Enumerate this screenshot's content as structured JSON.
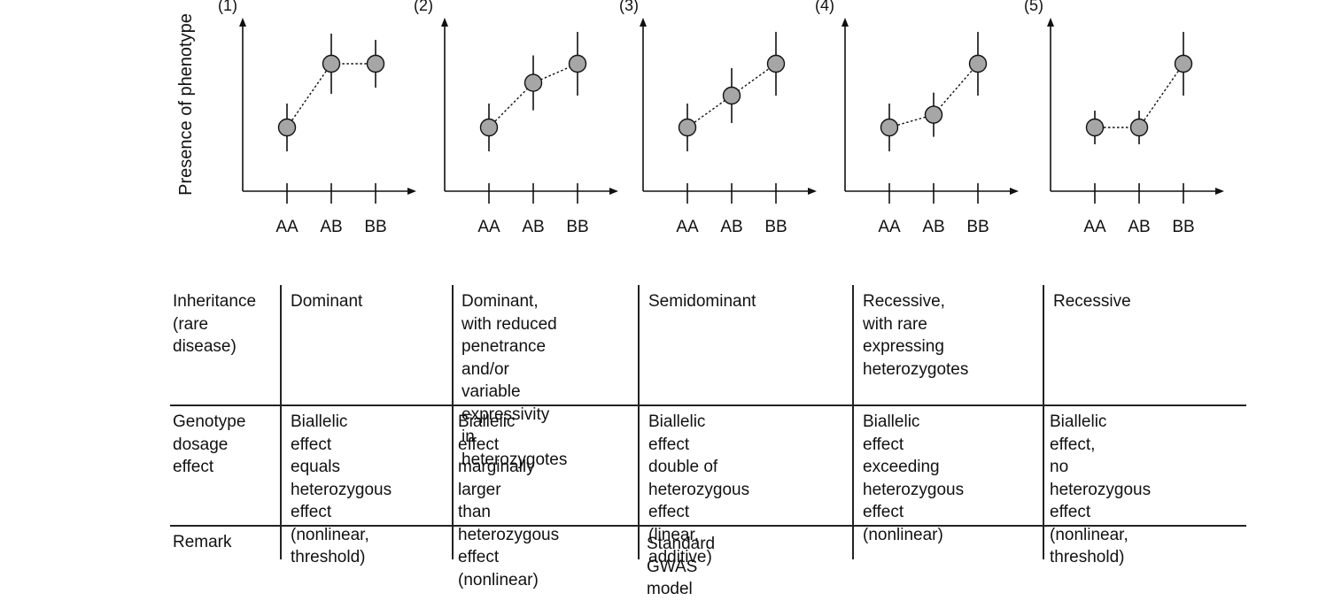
{
  "y_axis_label": "Presence of phenotype",
  "panels": [
    {
      "label": "(1)",
      "categories": [
        "AA",
        "AB",
        "BB"
      ],
      "values": [
        0.45,
        0.85,
        0.85
      ]
    },
    {
      "label": "(2)",
      "categories": [
        "AA",
        "AB",
        "BB"
      ],
      "values": [
        0.45,
        0.73,
        0.85
      ]
    },
    {
      "label": "(3)",
      "categories": [
        "AA",
        "AB",
        "BB"
      ],
      "values": [
        0.45,
        0.65,
        0.85
      ]
    },
    {
      "label": "(4)",
      "categories": [
        "AA",
        "AB",
        "BB"
      ],
      "values": [
        0.45,
        0.53,
        0.85
      ]
    },
    {
      "label": "(5)",
      "categories": [
        "AA",
        "AB",
        "BB"
      ],
      "values": [
        0.45,
        0.45,
        0.85
      ]
    }
  ],
  "table": {
    "rows": [
      {
        "header": "Inheritance\n(rare\ndisease)",
        "cells": [
          "Dominant",
          "Dominant,\nwith reduced\npenetrance and/or\nvariable expressivity\nin heterozygotes",
          "Semidominant",
          "Recessive,\nwith rare expressing\nheterozygotes",
          "Recessive"
        ]
      },
      {
        "header": "Genotype\ndosage\neffect",
        "cells": [
          "Biallelic effect\nequals\nheterozygous\neffect (nonlinear,\nthreshold)",
          "Biallelic effect\nmarginally larger\nthan heterozygous\neffect (nonlinear)",
          "Biallelic effect\ndouble of\nheterozygous effect\n(linear, additive)",
          "Biallelic effect\nexceeding\nheterozygous effect\n(nonlinear)",
          "Biallelic effect,\nno heterozygous effect\n(nonlinear, threshold)"
        ]
      },
      {
        "header": "Remark",
        "cells": [
          "",
          "",
          "Standard GWAS model",
          "",
          ""
        ]
      }
    ]
  }
}
